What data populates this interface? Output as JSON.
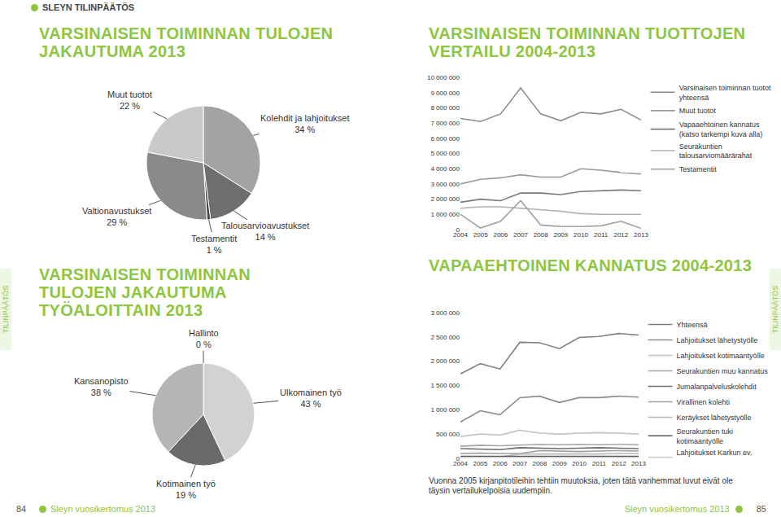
{
  "page": {
    "header": "SLEYN TILINPÄÄTÖS",
    "side_tabs": [
      "TILINPÄÄTÖS",
      "TILINPÄÄTÖS"
    ],
    "footer_left": {
      "page": 84,
      "text": "Sleyn vuosikertomus 2013"
    },
    "footer_right": {
      "page": 85,
      "text": "Sleyn vuosikertomus 2013"
    }
  },
  "chart_data": [
    {
      "type": "pie",
      "title": "VARSINAISEN TOIMINNAN TULOJEN JAKAUTUMA 2013",
      "categories": [
        "Kolehdit ja lahjoitukset",
        "Talousarvioavustukset",
        "Testamentit",
        "Valtionavustukset",
        "Muut tuotot"
      ],
      "values": [
        34,
        14,
        1,
        29,
        22
      ],
      "value_labels": [
        "34 %",
        "14 %",
        "1 %",
        "29 %",
        "22 %"
      ],
      "colors": [
        "#a3a3a3",
        "#6e6e6e",
        "#474747",
        "#8a8a8a",
        "#c9c9c9"
      ],
      "data_labels": true
    },
    {
      "type": "pie",
      "title": "VARSINAISEN TOIMINNAN TULOJEN JAKAUTUMA TYÖALOITTAIN 2013",
      "categories": [
        "Hallinto",
        "Ulkomainen työ",
        "Kotimainen työ",
        "Kansanopisto"
      ],
      "values": [
        0,
        43,
        19,
        38
      ],
      "value_labels": [
        "0 %",
        "43 %",
        "19 %",
        "38 %"
      ],
      "colors": [
        "#333333",
        "#d2d2d2",
        "#6a6a6a",
        "#b5b5b5"
      ],
      "data_labels": true
    },
    {
      "type": "line",
      "title": "VARSINAISEN TOIMINNAN TUOTTOJEN VERTAILU 2004-2013",
      "categories": [
        "2004",
        "2005",
        "2006",
        "2007",
        "2008",
        "2009",
        "2010",
        "2011",
        "2012",
        "2013"
      ],
      "series": [
        {
          "name": "Varsinaisen toiminnan tuotot yhteensä",
          "color": "#8c8c8c",
          "values": [
            7300000,
            7100000,
            7600000,
            9300000,
            7600000,
            7150000,
            7700000,
            7600000,
            7900000,
            7200000
          ]
        },
        {
          "name": "Muut tuotot",
          "color": "#9a9a9a",
          "values": [
            3000000,
            3300000,
            3400000,
            3600000,
            3450000,
            3450000,
            4000000,
            3900000,
            3750000,
            3650000
          ]
        },
        {
          "name": "Vapaaehtoinen kannatus (katso tarkempi kuva alla)",
          "color": "#7a7a7a",
          "values": [
            1800000,
            2000000,
            1900000,
            2400000,
            2400000,
            2300000,
            2500000,
            2550000,
            2600000,
            2550000
          ]
        },
        {
          "name": "Seurakuntien talousarviomäärärahat",
          "color": "#b0b0b0",
          "values": [
            1400000,
            1500000,
            1500000,
            1400000,
            1300000,
            1200000,
            1050000,
            1000000,
            1000000,
            1000000
          ]
        },
        {
          "name": "Testamentit",
          "color": "#a0a0a0",
          "values": [
            1000000,
            100000,
            550000,
            1900000,
            300000,
            200000,
            200000,
            250000,
            550000,
            80000
          ]
        }
      ],
      "ylim": [
        0,
        10000000
      ],
      "yticks": [
        0,
        {
          "value": 1000000,
          "label": "1 000 000"
        },
        {
          "value": 2000000,
          "label": "2 000 000"
        },
        {
          "value": 3000000,
          "label": "3 000 000"
        },
        {
          "value": 4000000,
          "label": "4 000 000"
        },
        {
          "value": 5000000,
          "label": "5 000 000"
        },
        {
          "value": 6000000,
          "label": "6 000 000"
        },
        {
          "value": 7000000,
          "label": "7 000 000"
        },
        {
          "value": 8000000,
          "label": "8 000 000"
        },
        {
          "value": 9000000,
          "label": "9 000 000"
        },
        {
          "value": 10000000,
          "label": "10 000 000"
        }
      ],
      "grid": false,
      "legend": "right"
    },
    {
      "type": "line",
      "title": "VAPAAEHTOINEN KANNATUS 2004-2013",
      "categories": [
        "2004",
        "2005",
        "2006",
        "2007",
        "2008",
        "2009",
        "2010",
        "2011",
        "2012",
        "2013"
      ],
      "series": [
        {
          "name": "Yhteensä",
          "color": "#808080",
          "values": [
            1740000,
            1950000,
            1840000,
            2390000,
            2380000,
            2260000,
            2490000,
            2510000,
            2570000,
            2540000
          ]
        },
        {
          "name": "Lahjoitukset lähetystyölle",
          "color": "#8c8c8c",
          "values": [
            750000,
            980000,
            900000,
            1250000,
            1280000,
            1150000,
            1250000,
            1250000,
            1280000,
            1260000
          ]
        },
        {
          "name": "Lahjoitukset kotimaantyölle",
          "color": "#c4c4c4",
          "values": [
            450000,
            500000,
            480000,
            580000,
            520000,
            500000,
            520000,
            530000,
            520000,
            500000
          ]
        },
        {
          "name": "Seurakuntien muu kannatus",
          "color": "#a8a8a8",
          "values": [
            250000,
            270000,
            260000,
            280000,
            290000,
            280000,
            290000,
            280000,
            290000,
            280000
          ]
        },
        {
          "name": "Jumalanpalveluskolehdit",
          "color": "#6e6e6e",
          "values": [
            200000,
            190000,
            180000,
            220000,
            210000,
            200000,
            210000,
            220000,
            210000,
            200000
          ]
        },
        {
          "name": "Virallinen kolehti",
          "color": "#9e9e9e",
          "values": [
            100000,
            110000,
            100000,
            100000,
            160000,
            150000,
            140000,
            150000,
            160000,
            150000
          ]
        },
        {
          "name": "Keräykset lähetystyölle",
          "color": "#b8b8b8",
          "values": [
            30000,
            30000,
            30000,
            90000,
            90000,
            80000,
            90000,
            90000,
            100000,
            100000
          ]
        },
        {
          "name": "Seurakuntien tuki kotimaantyölle",
          "color": "#5a5a5a",
          "values": [
            40000,
            40000,
            40000,
            40000,
            40000,
            40000,
            40000,
            40000,
            40000,
            40000
          ]
        },
        {
          "name": "Lahjoitukset Karkun ev. opistolle",
          "color": "#d0d0d0",
          "values": [
            20000,
            20000,
            20000,
            20000,
            20000,
            20000,
            20000,
            20000,
            20000,
            20000
          ]
        }
      ],
      "ylim": [
        0,
        3000000
      ],
      "yticks": [
        0,
        {
          "value": 500000,
          "label": "500 000"
        },
        {
          "value": 1000000,
          "label": "1 000 000"
        },
        {
          "value": 1500000,
          "label": "1 500 000"
        },
        {
          "value": 2000000,
          "label": "2 000 000"
        },
        {
          "value": 2500000,
          "label": "2 500 000"
        },
        {
          "value": 3000000,
          "label": "3 000 000"
        }
      ],
      "grid": false,
      "legend": "right",
      "note": "Vuonna 2005 kirjanpitotileihin tehtiin muutoksia, joten tätä vanhemmat luvut eivät ole täysin vertailukelpoisia uudempiin."
    }
  ]
}
